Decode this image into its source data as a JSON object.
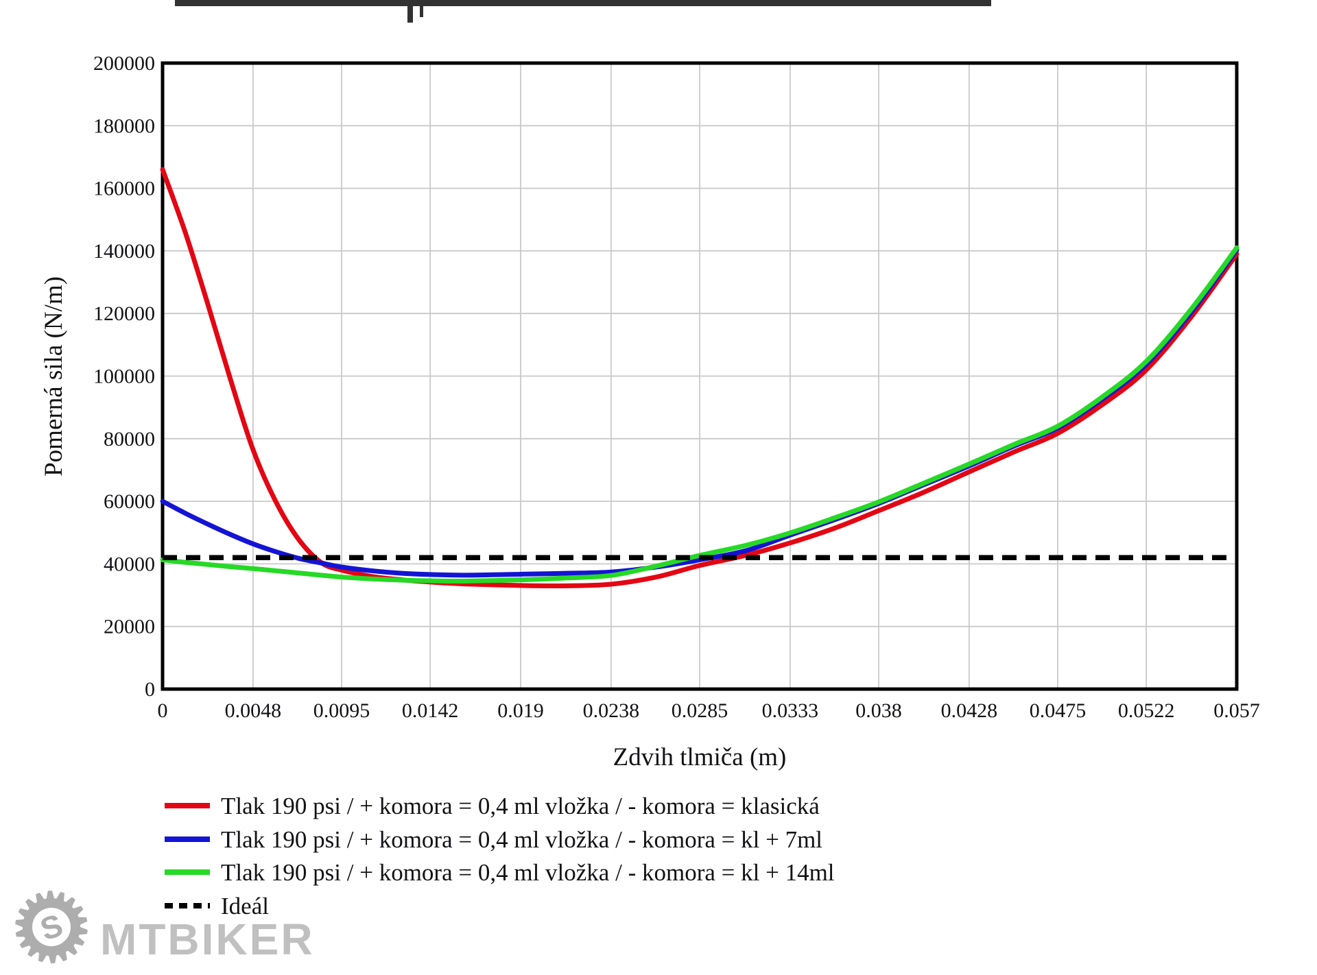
{
  "watermark": {
    "text": "MTBIKER",
    "logo_color": "#9f9f9f"
  },
  "chart_data": {
    "type": "line",
    "title": "",
    "xlabel": "Zdvih tlmiča (m)",
    "ylabel": "Pomerná sila (N/m)",
    "xlim": [
      0,
      0.057
    ],
    "ylim": [
      0,
      200000
    ],
    "grid": true,
    "legend_position": "bottom-left",
    "x_ticks": [
      0,
      0.0048,
      0.0095,
      0.0142,
      0.019,
      0.0238,
      0.0285,
      0.0333,
      0.038,
      0.0428,
      0.0475,
      0.0522,
      0.057
    ],
    "x_tick_labels": [
      "0",
      "0.0048",
      "0.0095",
      "0.0142",
      "0.019",
      "0.0238",
      "0.0285",
      "0.0333",
      "0.038",
      "0.0428",
      "0.0475",
      "0.0522",
      "0.057"
    ],
    "y_ticks": [
      0,
      20000,
      40000,
      60000,
      80000,
      100000,
      120000,
      140000,
      160000,
      180000,
      200000
    ],
    "x_common": [
      0,
      0.0012,
      0.0024,
      0.0036,
      0.0048,
      0.006,
      0.0072,
      0.0084,
      0.0095,
      0.0111,
      0.0127,
      0.0142,
      0.016,
      0.019,
      0.0214,
      0.0238,
      0.0262,
      0.0285,
      0.031,
      0.0333,
      0.0357,
      0.038,
      0.0404,
      0.0428,
      0.0452,
      0.0475,
      0.0499,
      0.0522,
      0.0546,
      0.057
    ],
    "series": [
      {
        "name": "Tlak 190 psi / +  komora = 0,4 ml vložka / - komora = klasická",
        "color": "#e30613",
        "style": "solid",
        "y": [
          166000,
          146000,
          123000,
          99000,
          76500,
          60000,
          48000,
          40500,
          38000,
          36000,
          34900,
          34200,
          33600,
          33100,
          33000,
          33500,
          35800,
          39500,
          42800,
          46700,
          51500,
          57000,
          62900,
          69400,
          75800,
          81700,
          91000,
          102000,
          119000,
          139000
        ]
      },
      {
        "name": "Tlak 190 psi / +  komora = 0,4 ml vložka / - komora = kl + 7ml",
        "color": "#1414d4",
        "style": "solid",
        "y": [
          60000,
          56200,
          52700,
          49400,
          46400,
          43900,
          41800,
          40300,
          39000,
          37800,
          37000,
          36600,
          36400,
          36700,
          37000,
          37400,
          39000,
          41300,
          44300,
          49200,
          54200,
          59300,
          65300,
          71300,
          77700,
          83400,
          92800,
          103800,
          120500,
          140300
        ]
      },
      {
        "name": "Tlak 190 psi / +  komora = 0,4 ml vložka / - komora = kl + 14ml",
        "color": "#26d926",
        "style": "solid",
        "y": [
          41300,
          40500,
          39800,
          39100,
          38500,
          37800,
          37100,
          36400,
          35800,
          35200,
          34800,
          34600,
          34500,
          34900,
          35500,
          36300,
          39300,
          42700,
          46000,
          49900,
          54800,
          59800,
          65800,
          71900,
          78200,
          84000,
          93500,
          104700,
          121500,
          141000
        ]
      },
      {
        "name": "Ideál",
        "color": "#000000",
        "style": "dashed",
        "ideal_value": 42000
      }
    ]
  }
}
